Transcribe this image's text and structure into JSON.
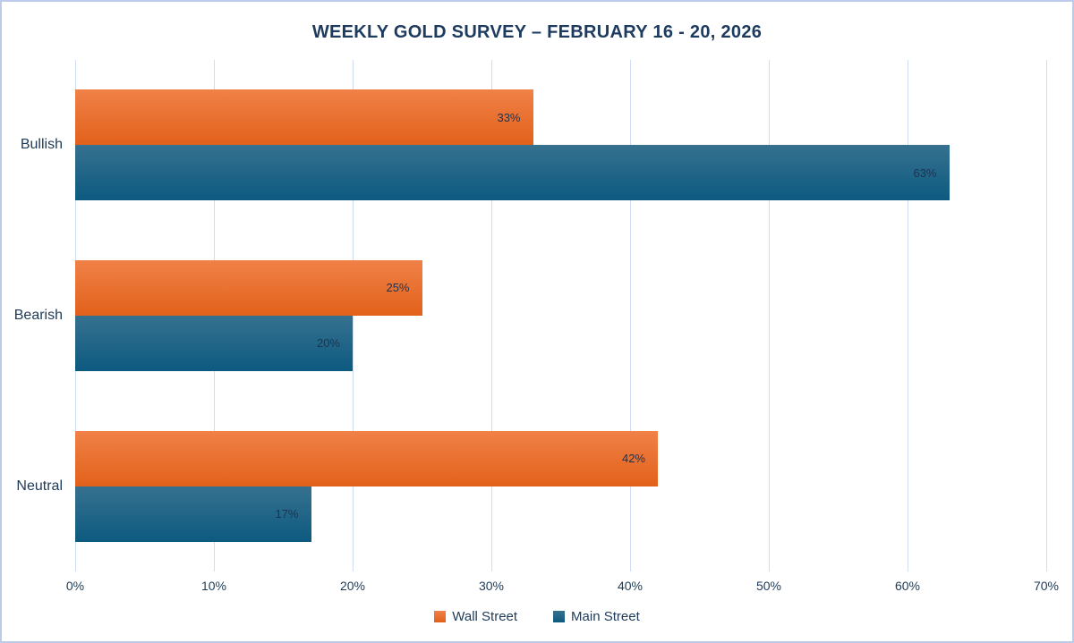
{
  "chart_data": {
    "type": "bar",
    "orientation": "horizontal",
    "title": "WEEKLY GOLD SURVEY – FEBRUARY 16 - 20, 2026",
    "categories": [
      "Bullish",
      "Bearish",
      "Neutral"
    ],
    "series": [
      {
        "name": "Wall Street",
        "values": [
          33,
          25,
          42
        ],
        "labels": [
          "33%",
          "25%",
          "42%"
        ],
        "color_top": "#F08148",
        "color_bottom": "#E2611A"
      },
      {
        "name": "Main Street",
        "values": [
          63,
          20,
          17
        ],
        "labels": [
          "63%",
          "20%",
          "17%"
        ],
        "color_top": "#36718F",
        "color_bottom": "#0D5A80"
      }
    ],
    "value_suffix": "%",
    "xlim": [
      0,
      70
    ],
    "x_ticks": [
      "0%",
      "10%",
      "20%",
      "30%",
      "40%",
      "50%",
      "60%",
      "70%"
    ],
    "grid": true,
    "legend_position": "bottom",
    "data_labels": true,
    "colors": {
      "title_text": "#1d3a5f",
      "axis_text": "#1e3a56",
      "bar_label_text": "#1c3350",
      "gridline": "#cfdcf3",
      "frame_border": "#bccbe9",
      "background": "#ffffff"
    }
  }
}
